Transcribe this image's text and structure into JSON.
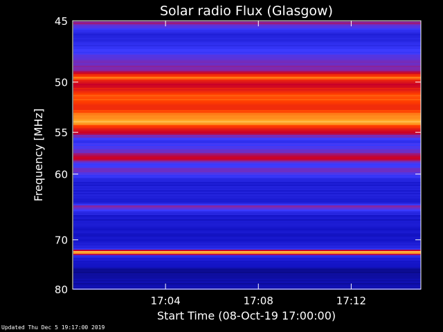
{
  "chart_data": {
    "type": "heatmap",
    "title": "Solar radio Flux (Glasgow)",
    "xlabel": "Start Time (08-Oct-19 17:00:00)",
    "ylabel": "Frequency [MHz]",
    "x_ticks": [
      "17:04",
      "17:08",
      "17:12"
    ],
    "x_tick_minutes": [
      4,
      8,
      12
    ],
    "xlim_minutes": [
      0,
      15
    ],
    "y_ticks": [
      45,
      50,
      55,
      60,
      70,
      80
    ],
    "ylim_mhz": [
      45,
      80
    ],
    "y_axis_scale": "reciprocal",
    "colormap": "blue-red-yellow-white",
    "intensity_bands": [
      {
        "freq_mhz": 45.0,
        "level": 0.6
      },
      {
        "freq_mhz": 46.0,
        "level": 0.25
      },
      {
        "freq_mhz": 48.0,
        "level": 0.45
      },
      {
        "freq_mhz": 49.0,
        "level": 0.55
      },
      {
        "freq_mhz": 49.6,
        "level": 0.85
      },
      {
        "freq_mhz": 50.2,
        "level": 0.62
      },
      {
        "freq_mhz": 51.0,
        "level": 0.78
      },
      {
        "freq_mhz": 51.6,
        "level": 0.84
      },
      {
        "freq_mhz": 52.4,
        "level": 0.74
      },
      {
        "freq_mhz": 53.2,
        "level": 0.86
      },
      {
        "freq_mhz": 54.0,
        "level": 0.9
      },
      {
        "freq_mhz": 55.0,
        "level": 0.62
      },
      {
        "freq_mhz": 56.0,
        "level": 0.35
      },
      {
        "freq_mhz": 57.3,
        "level": 0.5
      },
      {
        "freq_mhz": 58.0,
        "level": 0.62
      },
      {
        "freq_mhz": 58.8,
        "level": 0.4
      },
      {
        "freq_mhz": 59.5,
        "level": 0.5
      },
      {
        "freq_mhz": 61.0,
        "level": 0.25
      },
      {
        "freq_mhz": 64.0,
        "level": 0.25
      },
      {
        "freq_mhz": 64.5,
        "level": 0.52
      },
      {
        "freq_mhz": 66.0,
        "level": 0.22
      },
      {
        "freq_mhz": 70.0,
        "level": 0.2
      },
      {
        "freq_mhz": 71.6,
        "level": 0.3
      },
      {
        "freq_mhz": 72.3,
        "level": 1.0
      },
      {
        "freq_mhz": 73.0,
        "level": 0.28
      },
      {
        "freq_mhz": 76.0,
        "level": 0.12
      },
      {
        "freq_mhz": 80.0,
        "level": 0.18
      }
    ],
    "grid": false,
    "legend": "none"
  },
  "footer": "Updated Thu Dec  5 19:17:00 2019"
}
